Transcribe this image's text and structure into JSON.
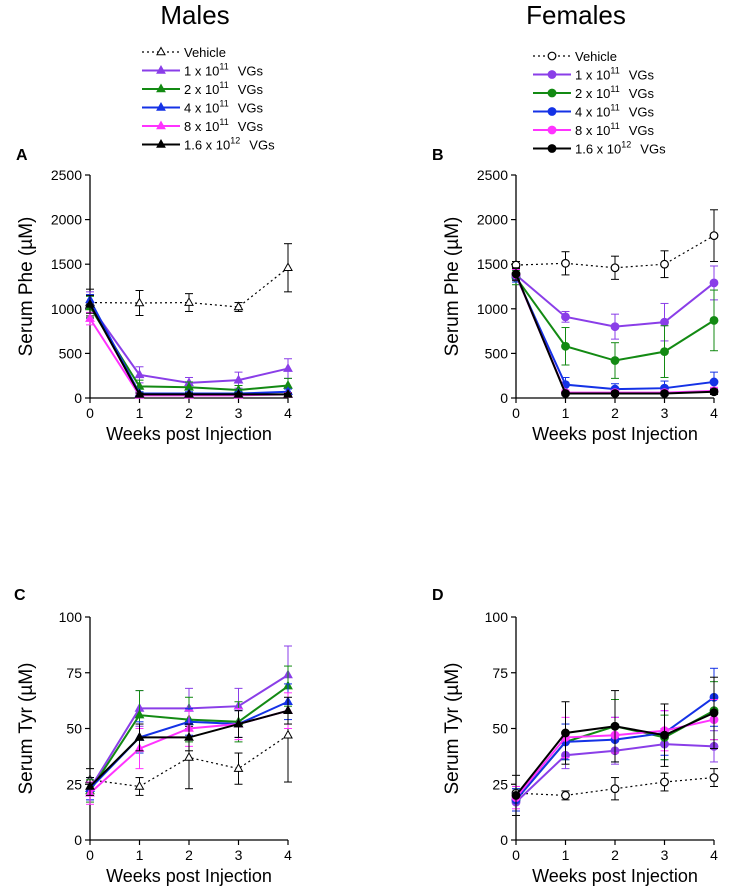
{
  "headers": {
    "males": "Males",
    "females": "Females"
  },
  "legends": {
    "males": {
      "vehicle": "Vehicle",
      "doses": [
        {
          "mant": "1 x 10",
          "exp": "11",
          "unit": "VGs"
        },
        {
          "mant": "2 x 10",
          "exp": "11",
          "unit": "VGs"
        },
        {
          "mant": "4 x 10",
          "exp": "11",
          "unit": "VGs"
        },
        {
          "mant": "8 x 10",
          "exp": "11",
          "unit": "VGs"
        },
        {
          "mant": "1.6 x 10",
          "exp": "12",
          "unit": "VGs"
        }
      ]
    },
    "females": {
      "vehicle": "Vehicle",
      "doses": [
        {
          "mant": "1 x 10",
          "exp": "11",
          "unit": "VGs"
        },
        {
          "mant": "2 x 10",
          "exp": "11",
          "unit": "VGs"
        },
        {
          "mant": "4 x 10",
          "exp": "11",
          "unit": "VGs"
        },
        {
          "mant": "8 x 10",
          "exp": "11",
          "unit": "VGs"
        },
        {
          "mant": "1.6 x 10",
          "exp": "12",
          "unit": "VGs"
        }
      ]
    }
  },
  "series_colors": {
    "Vehicle": "#000000",
    "1 x 10^11 VGs": "#8a3ee8",
    "2 x 10^11 VGs": "#138a13",
    "4 x 10^11 VGs": "#1432e6",
    "8 x 10^11 VGs": "#ff33ff",
    "1.6 x 10^12 VGs": "#000000"
  },
  "chart_data": [
    {
      "panel": "A",
      "type": "line",
      "group": "Males",
      "marker": "triangle",
      "ylabel": "Serum Phe (µM)",
      "xlabel": "Weeks post Injection",
      "x": [
        0,
        1,
        2,
        3,
        4
      ],
      "xticks": [
        "0",
        "1",
        "2",
        "3",
        "4"
      ],
      "ylim": [
        0,
        2500
      ],
      "yticks": [
        "0",
        "500",
        "1000",
        "1500",
        "2000",
        "2500"
      ],
      "series": [
        {
          "name": "Vehicle",
          "values": [
            1070,
            1065,
            1070,
            1020,
            1460
          ],
          "errors": [
            150,
            140,
            100,
            50,
            270
          ]
        },
        {
          "name": "1 x 10^11 VGs",
          "values": [
            1040,
            260,
            170,
            200,
            330
          ],
          "errors": [
            150,
            90,
            60,
            90,
            110
          ]
        },
        {
          "name": "2 x 10^11 VGs",
          "values": [
            1020,
            130,
            120,
            90,
            140
          ],
          "errors": [
            120,
            70,
            60,
            50,
            80
          ]
        },
        {
          "name": "4 x 10^11 VGs",
          "values": [
            1100,
            50,
            50,
            50,
            70
          ],
          "errors": [
            60,
            20,
            20,
            20,
            30
          ]
        },
        {
          "name": "8 x 10^11 VGs",
          "values": [
            890,
            30,
            30,
            30,
            40
          ],
          "errors": [
            70,
            15,
            15,
            15,
            20
          ]
        },
        {
          "name": "1.6 x 10^12 VGs",
          "values": [
            1050,
            40,
            40,
            40,
            40
          ],
          "errors": [
            100,
            15,
            15,
            15,
            15
          ]
        }
      ]
    },
    {
      "panel": "B",
      "type": "line",
      "group": "Females",
      "marker": "circle",
      "ylabel": "Serum Phe (µM)",
      "xlabel": "Weeks post Injection",
      "x": [
        0,
        1,
        2,
        3,
        4
      ],
      "xticks": [
        "0",
        "1",
        "2",
        "3",
        "4"
      ],
      "ylim": [
        0,
        2500
      ],
      "yticks": [
        "0",
        "500",
        "1000",
        "1500",
        "2000",
        "2500"
      ],
      "series": [
        {
          "name": "Vehicle",
          "values": [
            1490,
            1510,
            1460,
            1500,
            1820
          ],
          "errors": [
            40,
            130,
            130,
            150,
            290
          ]
        },
        {
          "name": "1 x 10^11 VGs",
          "values": [
            1380,
            910,
            800,
            850,
            1290
          ],
          "errors": [
            60,
            60,
            140,
            210,
            190
          ]
        },
        {
          "name": "2 x 10^11 VGs",
          "values": [
            1350,
            580,
            420,
            520,
            870
          ],
          "errors": [
            80,
            210,
            200,
            290,
            340
          ]
        },
        {
          "name": "4 x 10^11 VGs",
          "values": [
            1370,
            150,
            100,
            110,
            180
          ],
          "errors": [
            70,
            80,
            60,
            80,
            110
          ]
        },
        {
          "name": "8 x 10^11 VGs",
          "values": [
            1380,
            60,
            60,
            60,
            80
          ],
          "errors": [
            60,
            30,
            30,
            30,
            40
          ]
        },
        {
          "name": "1.6 x 10^12 VGs",
          "values": [
            1390,
            50,
            50,
            50,
            70
          ],
          "errors": [
            70,
            20,
            20,
            20,
            30
          ]
        }
      ]
    },
    {
      "panel": "C",
      "type": "line",
      "group": "Males",
      "marker": "triangle",
      "ylabel": "Serum Tyr (µM)",
      "xlabel": "Weeks post Injection",
      "x": [
        0,
        1,
        2,
        3,
        4
      ],
      "xticks": [
        "0",
        "1",
        "2",
        "3",
        "4"
      ],
      "ylim": [
        0,
        100
      ],
      "yticks": [
        "0",
        "25",
        "50",
        "75",
        "100"
      ],
      "series": [
        {
          "name": "Vehicle",
          "values": [
            27,
            24,
            37,
            32,
            47
          ],
          "errors": [
            5,
            4,
            14,
            7,
            21
          ]
        },
        {
          "name": "1 x 10^11 VGs",
          "values": [
            23,
            59,
            59,
            60,
            74
          ],
          "errors": [
            5,
            8,
            9,
            8,
            13
          ]
        },
        {
          "name": "2 x 10^11 VGs",
          "values": [
            22,
            56,
            54,
            53,
            69
          ],
          "errors": [
            5,
            11,
            10,
            9,
            9
          ]
        },
        {
          "name": "4 x 10^11 VGs",
          "values": [
            23,
            46,
            53,
            52,
            62
          ],
          "errors": [
            5,
            7,
            6,
            6,
            8
          ]
        },
        {
          "name": "8 x 10^11 VGs",
          "values": [
            21,
            41,
            50,
            52,
            58
          ],
          "errors": [
            5,
            9,
            8,
            7,
            8
          ]
        },
        {
          "name": "1.6 x 10^12 VGs",
          "values": [
            24,
            46,
            46,
            52,
            58
          ],
          "errors": [
            4,
            6,
            6,
            6,
            6
          ]
        }
      ]
    },
    {
      "panel": "D",
      "type": "line",
      "group": "Females",
      "marker": "circle",
      "ylabel": "Serum Tyr (µM)",
      "xlabel": "Weeks post Injection",
      "x": [
        0,
        1,
        2,
        3,
        4
      ],
      "xticks": [
        "0",
        "1",
        "2",
        "3",
        "4"
      ],
      "ylim": [
        0,
        100
      ],
      "yticks": [
        "0",
        "25",
        "50",
        "75",
        "100"
      ],
      "series": [
        {
          "name": "Vehicle",
          "values": [
            21,
            20,
            23,
            26,
            28
          ],
          "errors": [
            3,
            2,
            5,
            4,
            4
          ]
        },
        {
          "name": "1 x 10^11 VGs",
          "values": [
            17,
            38,
            40,
            43,
            42
          ],
          "errors": [
            4,
            6,
            6,
            7,
            7
          ]
        },
        {
          "name": "2 x 10^11 VGs",
          "values": [
            18,
            44,
            51,
            46,
            58
          ],
          "errors": [
            5,
            8,
            12,
            10,
            13
          ]
        },
        {
          "name": "4 x 10^11 VGs",
          "values": [
            18,
            44,
            45,
            48,
            64
          ],
          "errors": [
            5,
            8,
            10,
            10,
            13
          ]
        },
        {
          "name": "8 x 10^11 VGs",
          "values": [
            19,
            46,
            47,
            49,
            54
          ],
          "errors": [
            5,
            9,
            8,
            9,
            9
          ]
        },
        {
          "name": "1.6 x 10^12 VGs",
          "values": [
            20,
            48,
            51,
            47,
            57
          ],
          "errors": [
            9,
            14,
            16,
            14,
            16
          ]
        }
      ]
    }
  ]
}
